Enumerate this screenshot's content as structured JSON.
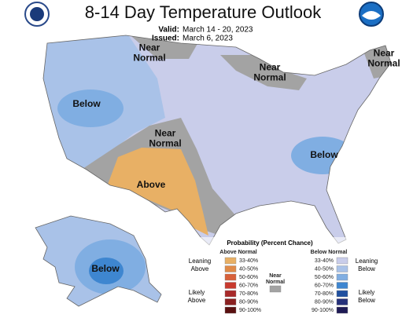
{
  "header": {
    "title": "8-14 Day Temperature Outlook",
    "valid_label": "Valid:",
    "valid": "March 14 - 20, 2023",
    "issued_label": "Issued:",
    "issued": "March 6, 2023"
  },
  "map_labels": [
    {
      "lines": [
        "Near",
        "Normal"
      ]
    },
    {
      "lines": [
        "Near",
        "Normal"
      ]
    },
    {
      "lines": [
        "Near",
        "Normal"
      ]
    },
    {
      "lines": [
        "Near",
        "Normal"
      ]
    },
    {
      "lines": [
        "Below"
      ]
    },
    {
      "lines": [
        "Below"
      ]
    },
    {
      "lines": [
        "Below"
      ]
    },
    {
      "lines": [
        "Above"
      ]
    }
  ],
  "legend": {
    "title": "Probability (Percent Chance)",
    "above_header": "Above Normal",
    "below_header": "Below Normal",
    "near_header": [
      "Near",
      "Normal"
    ],
    "near_color": "#a3a3a3",
    "groups": {
      "leaning_above": [
        "Leaning",
        "Above"
      ],
      "likely_above": [
        "Likely",
        "Above"
      ],
      "leaning_below": [
        "Leaning",
        "Below"
      ],
      "likely_below": [
        "Likely",
        "Below"
      ]
    },
    "above": [
      {
        "range": "33-40%",
        "color": "#e8b065"
      },
      {
        "range": "40-50%",
        "color": "#e08a48"
      },
      {
        "range": "50-60%",
        "color": "#d8603a"
      },
      {
        "range": "60-70%",
        "color": "#c83a2e"
      },
      {
        "range": "70-80%",
        "color": "#a82a2a"
      },
      {
        "range": "80-90%",
        "color": "#8a2020"
      },
      {
        "range": "90-100%",
        "color": "#5a1010"
      }
    ],
    "below": [
      {
        "range": "33-40%",
        "color": "#c9cdea"
      },
      {
        "range": "40-50%",
        "color": "#a9c2e8"
      },
      {
        "range": "50-60%",
        "color": "#80aee2"
      },
      {
        "range": "60-70%",
        "color": "#3e86d0"
      },
      {
        "range": "70-80%",
        "color": "#2050a0"
      },
      {
        "range": "80-90%",
        "color": "#25307a"
      },
      {
        "range": "90-100%",
        "color": "#1e1a55"
      }
    ]
  }
}
